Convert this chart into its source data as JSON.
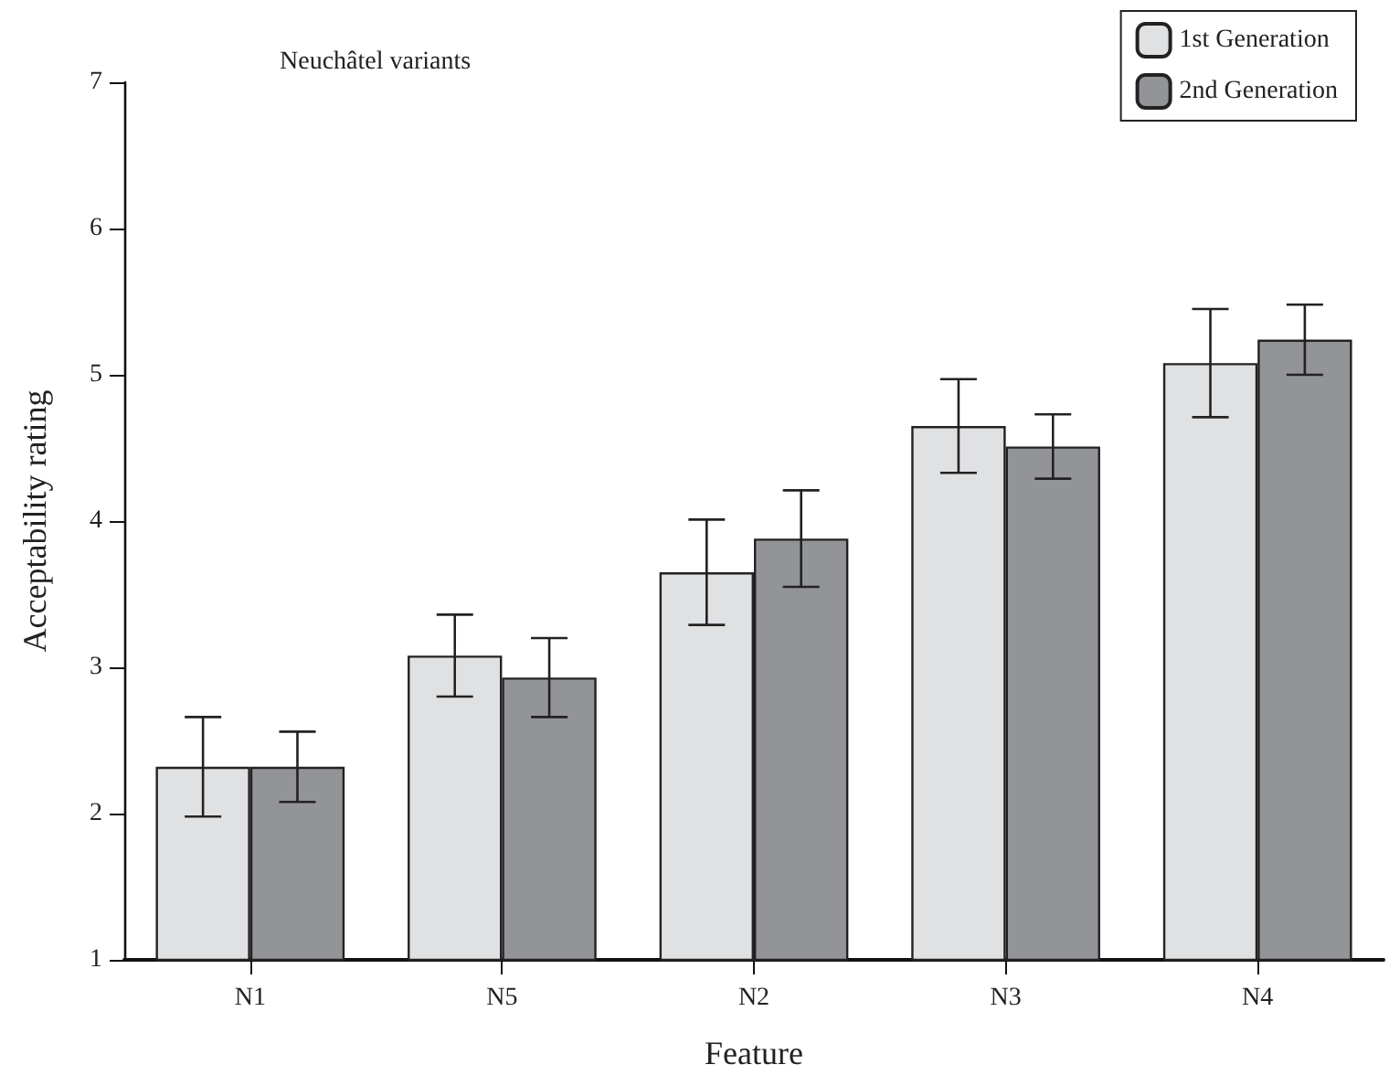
{
  "chart_data": {
    "type": "bar",
    "title": "Neuchâtel variants",
    "xlabel": "Feature",
    "ylabel": "Acceptability rating",
    "categories": [
      "N1",
      "N5",
      "N2",
      "N3",
      "N4"
    ],
    "series": [
      {
        "name": "1st Generation",
        "color": "#e0e1e3",
        "values": [
          2.32,
          3.08,
          3.65,
          4.65,
          5.08
        ],
        "errors": [
          0.34,
          0.28,
          0.36,
          0.32,
          0.37
        ]
      },
      {
        "name": "2nd Generation",
        "color": "#939498",
        "values": [
          2.32,
          2.93,
          3.88,
          4.51,
          5.24
        ],
        "errors": [
          0.24,
          0.27,
          0.33,
          0.22,
          0.24
        ]
      }
    ],
    "ylim": [
      1,
      7
    ],
    "yticks": [
      1,
      2,
      3,
      4,
      5,
      6,
      7
    ],
    "grid": false,
    "legend": "top right"
  }
}
